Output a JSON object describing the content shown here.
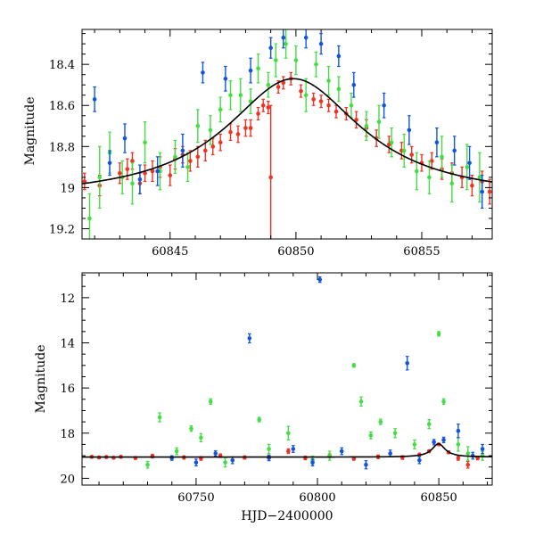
{
  "colors": {
    "red": "#ee3322",
    "green": "#44dd44",
    "blue": "#1155dd",
    "model": "#000000"
  },
  "chart_data": [
    {
      "type": "scatter",
      "panel": "top",
      "xlabel": "",
      "ylabel": "Magnitude",
      "xlim": [
        60841.5,
        60857.8
      ],
      "ylim": [
        19.25,
        18.23
      ],
      "y_inverted": true,
      "xticks": [
        60845,
        60850,
        60855
      ],
      "xtick_labels": [
        "60845",
        "60850",
        "60855"
      ],
      "yticks": [
        18.4,
        18.6,
        18.8,
        19.0,
        19.2
      ],
      "ytick_labels": [
        "18.4",
        "18.6",
        "18.8",
        "19",
        "19.2"
      ],
      "model_curve": {
        "name": "",
        "baseline": 19.06,
        "peak_x": 60849.9,
        "amplitude": 0.59,
        "width": 3.3
      },
      "series": [
        {
          "name": "",
          "color": "red",
          "points": [
            [
              60841.6,
              18.97,
              0.04
            ],
            [
              60842.2,
              18.99,
              0.05
            ],
            [
              60843.0,
              18.93,
              0.05
            ],
            [
              60843.3,
              18.91,
              0.05
            ],
            [
              60843.5,
              18.87,
              0.04
            ],
            [
              60843.8,
              18.98,
              0.05
            ],
            [
              60844.0,
              18.93,
              0.04
            ],
            [
              60844.3,
              18.92,
              0.05
            ],
            [
              60844.6,
              18.9,
              0.05
            ],
            [
              60845.0,
              18.94,
              0.05
            ],
            [
              60845.2,
              18.86,
              0.05
            ],
            [
              60845.5,
              18.84,
              0.04
            ],
            [
              60845.8,
              18.87,
              0.05
            ],
            [
              60846.1,
              18.85,
              0.05
            ],
            [
              60846.4,
              18.82,
              0.05
            ],
            [
              60846.7,
              18.8,
              0.04
            ],
            [
              60847.0,
              18.78,
              0.04
            ],
            [
              60847.4,
              18.73,
              0.04
            ],
            [
              60847.7,
              18.74,
              0.04
            ],
            [
              60848.0,
              18.71,
              0.04
            ],
            [
              60848.2,
              18.71,
              0.04
            ],
            [
              60848.5,
              18.64,
              0.03
            ],
            [
              60848.7,
              18.6,
              0.03
            ],
            [
              60848.9,
              18.61,
              0.03
            ],
            [
              60849.0,
              18.95,
              0.35
            ],
            [
              60849.3,
              18.51,
              0.03
            ],
            [
              60849.5,
              18.49,
              0.03
            ],
            [
              60849.8,
              18.47,
              0.03
            ],
            [
              60850.2,
              18.53,
              0.03
            ],
            [
              60850.7,
              18.57,
              0.03
            ],
            [
              60851.0,
              18.58,
              0.03
            ],
            [
              60851.3,
              18.6,
              0.03
            ],
            [
              60851.6,
              18.63,
              0.03
            ],
            [
              60852.0,
              18.64,
              0.03
            ],
            [
              60852.4,
              18.67,
              0.04
            ],
            [
              60852.8,
              18.71,
              0.04
            ],
            [
              60853.2,
              18.76,
              0.04
            ],
            [
              60853.7,
              18.79,
              0.04
            ],
            [
              60854.2,
              18.82,
              0.04
            ],
            [
              60854.6,
              18.84,
              0.04
            ],
            [
              60855.0,
              18.88,
              0.04
            ],
            [
              60855.4,
              18.87,
              0.04
            ],
            [
              60855.8,
              18.91,
              0.05
            ],
            [
              60856.2,
              18.93,
              0.05
            ],
            [
              60856.6,
              18.95,
              0.05
            ],
            [
              60857.0,
              18.99,
              0.05
            ],
            [
              60857.4,
              18.97,
              0.05
            ],
            [
              60857.7,
              19.02,
              0.06
            ]
          ]
        },
        {
          "name": "",
          "color": "green",
          "points": [
            [
              60841.8,
              19.15,
              0.12
            ],
            [
              60842.2,
              18.95,
              0.15
            ],
            [
              60842.6,
              18.83,
              0.1
            ],
            [
              60843.1,
              18.95,
              0.08
            ],
            [
              60843.5,
              18.98,
              0.1
            ],
            [
              60844.0,
              18.78,
              0.1
            ],
            [
              60844.6,
              18.92,
              0.09
            ],
            [
              60845.2,
              18.85,
              0.08
            ],
            [
              60845.7,
              18.9,
              0.07
            ],
            [
              60846.1,
              18.7,
              0.08
            ],
            [
              60846.6,
              18.72,
              0.07
            ],
            [
              60847.0,
              18.62,
              0.06
            ],
            [
              60847.4,
              18.55,
              0.07
            ],
            [
              60847.8,
              18.55,
              0.08
            ],
            [
              60848.2,
              18.58,
              0.06
            ],
            [
              60848.5,
              18.42,
              0.07
            ],
            [
              60848.9,
              18.5,
              0.06
            ],
            [
              60849.2,
              18.38,
              0.08
            ],
            [
              60849.6,
              18.3,
              0.07
            ],
            [
              60850.0,
              18.38,
              0.07
            ],
            [
              60850.4,
              18.55,
              0.08
            ],
            [
              60850.8,
              18.4,
              0.06
            ],
            [
              60851.3,
              18.48,
              0.07
            ],
            [
              60851.7,
              18.52,
              0.06
            ],
            [
              60852.2,
              18.6,
              0.06
            ],
            [
              60852.8,
              18.7,
              0.07
            ],
            [
              60853.3,
              18.68,
              0.08
            ],
            [
              60853.8,
              18.78,
              0.07
            ],
            [
              60854.3,
              18.82,
              0.08
            ],
            [
              60854.8,
              18.92,
              0.09
            ],
            [
              60855.3,
              18.95,
              0.08
            ],
            [
              60855.8,
              18.85,
              0.1
            ],
            [
              60856.2,
              18.98,
              0.09
            ],
            [
              60856.8,
              18.9,
              0.11
            ],
            [
              60857.3,
              18.95,
              0.12
            ]
          ]
        },
        {
          "name": "",
          "color": "blue",
          "points": [
            [
              60842.0,
              18.57,
              0.06
            ],
            [
              60842.6,
              18.88,
              0.06
            ],
            [
              60843.2,
              18.76,
              0.07
            ],
            [
              60843.8,
              18.96,
              0.07
            ],
            [
              60844.5,
              18.92,
              0.07
            ],
            [
              60845.5,
              18.82,
              0.08
            ],
            [
              60846.3,
              18.44,
              0.05
            ],
            [
              60847.2,
              18.47,
              0.06
            ],
            [
              60848.2,
              18.43,
              0.06
            ],
            [
              60849.0,
              18.32,
              0.05
            ],
            [
              60849.5,
              18.27,
              0.05
            ],
            [
              60850.4,
              18.27,
              0.05
            ],
            [
              60851.0,
              18.3,
              0.05
            ],
            [
              60851.7,
              18.36,
              0.05
            ],
            [
              60852.3,
              18.5,
              0.06
            ],
            [
              60853.5,
              18.6,
              0.06
            ],
            [
              60854.5,
              18.72,
              0.07
            ],
            [
              60855.6,
              18.78,
              0.07
            ],
            [
              60856.3,
              18.82,
              0.07
            ],
            [
              60856.9,
              18.88,
              0.08
            ],
            [
              60857.4,
              19.02,
              0.08
            ]
          ]
        }
      ]
    },
    {
      "type": "scatter",
      "panel": "bottom",
      "xlabel": "HJD−2400000",
      "ylabel": "Magnitude",
      "xlim": [
        60703,
        60872
      ],
      "ylim": [
        20.3,
        10.9
      ],
      "y_inverted": true,
      "xticks": [
        60750,
        60800,
        60850
      ],
      "xtick_labels": [
        "60750",
        "60800",
        "60850"
      ],
      "yticks": [
        12,
        14,
        16,
        18,
        20
      ],
      "ytick_labels": [
        "12",
        "14",
        "16",
        "18",
        "20"
      ],
      "model_curve": {
        "name": "",
        "baseline": 19.06,
        "peak_x": 60849.9,
        "amplitude": 0.59,
        "width": 3.3
      },
      "series": [
        {
          "name": "",
          "color": "red",
          "points": [
            [
              60707,
              19.05,
              0.05
            ],
            [
              60710,
              19.08,
              0.05
            ],
            [
              60713,
              19.06,
              0.05
            ],
            [
              60716,
              19.09,
              0.05
            ],
            [
              60719,
              19.05,
              0.05
            ],
            [
              60725,
              19.1,
              0.06
            ],
            [
              60732,
              19.02,
              0.08
            ],
            [
              60745,
              19.08,
              0.07
            ],
            [
              60752,
              19.12,
              0.08
            ],
            [
              60760,
              19.0,
              0.08
            ],
            [
              60770,
              19.08,
              0.07
            ],
            [
              60780,
              19.05,
              0.08
            ],
            [
              60788,
              18.8,
              0.1
            ],
            [
              60795,
              19.1,
              0.08
            ],
            [
              60805,
              19.0,
              0.08
            ],
            [
              60815,
              19.12,
              0.08
            ],
            [
              60825,
              19.05,
              0.08
            ],
            [
              60835,
              19.08,
              0.08
            ],
            [
              60842,
              18.95,
              0.06
            ],
            [
              60846,
              18.8,
              0.06
            ],
            [
              60850,
              18.5,
              0.05
            ],
            [
              60854,
              18.85,
              0.06
            ],
            [
              60858,
              19.1,
              0.1
            ],
            [
              60862,
              19.4,
              0.15
            ],
            [
              60866,
              19.1,
              0.08
            ]
          ]
        },
        {
          "name": "",
          "color": "green",
          "points": [
            [
              60730,
              19.4,
              0.15
            ],
            [
              60735,
              17.3,
              0.2
            ],
            [
              60742,
              18.8,
              0.15
            ],
            [
              60748,
              17.8,
              0.12
            ],
            [
              60752,
              18.2,
              0.18
            ],
            [
              60756,
              16.6,
              0.12
            ],
            [
              60762,
              19.3,
              0.2
            ],
            [
              60776,
              17.4,
              0.1
            ],
            [
              60780,
              18.7,
              0.2
            ],
            [
              60788,
              18.0,
              0.3
            ],
            [
              60798,
              19.2,
              0.18
            ],
            [
              60805,
              19.0,
              0.2
            ],
            [
              60815,
              15.0,
              0.08
            ],
            [
              60818,
              16.6,
              0.2
            ],
            [
              60822,
              18.1,
              0.15
            ],
            [
              60826,
              17.5,
              0.12
            ],
            [
              60832,
              18.0,
              0.2
            ],
            [
              60840,
              18.5,
              0.2
            ],
            [
              60846,
              17.6,
              0.2
            ],
            [
              60850,
              13.6,
              0.1
            ],
            [
              60852,
              16.6,
              0.12
            ],
            [
              60858,
              18.5,
              0.3
            ],
            [
              60862,
              18.9,
              0.3
            ],
            [
              60868,
              19.0,
              0.2
            ]
          ]
        },
        {
          "name": "",
          "color": "blue",
          "points": [
            [
              60740,
              19.1,
              0.1
            ],
            [
              60750,
              19.3,
              0.15
            ],
            [
              60758,
              18.9,
              0.12
            ],
            [
              60765,
              19.2,
              0.15
            ],
            [
              60772,
              13.8,
              0.2
            ],
            [
              60780,
              19.1,
              0.12
            ],
            [
              60790,
              18.7,
              0.15
            ],
            [
              60798,
              19.3,
              0.15
            ],
            [
              60801,
              11.2,
              0.12
            ],
            [
              60810,
              18.8,
              0.15
            ],
            [
              60820,
              19.4,
              0.18
            ],
            [
              60830,
              18.9,
              0.15
            ],
            [
              60837,
              14.9,
              0.3
            ],
            [
              60842,
              19.2,
              0.15
            ],
            [
              60848,
              18.4,
              0.12
            ],
            [
              60852,
              18.3,
              0.12
            ],
            [
              60858,
              17.9,
              0.3
            ],
            [
              60864,
              19.0,
              0.15
            ],
            [
              60868,
              18.7,
              0.2
            ]
          ]
        }
      ]
    }
  ]
}
